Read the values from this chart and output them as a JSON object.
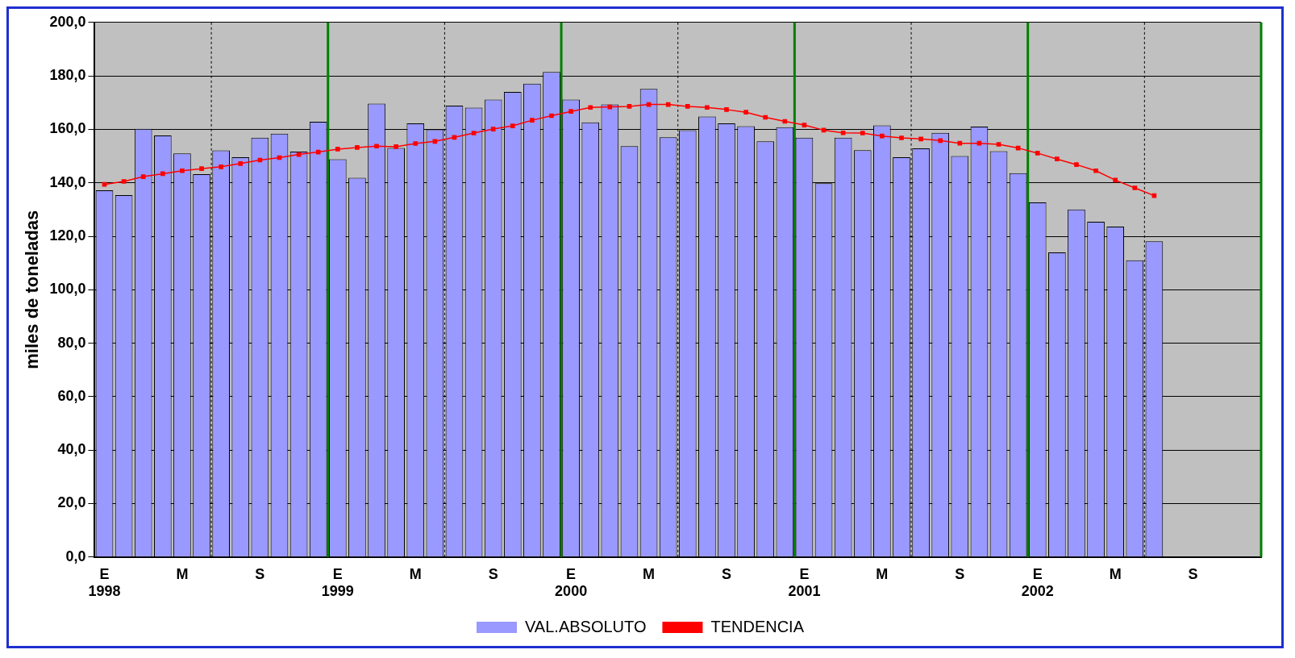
{
  "chart_data": {
    "type": "bar",
    "ylabel": "miles de toneladas",
    "categories": [
      "E\n1998",
      null,
      null,
      null,
      "M",
      null,
      null,
      null,
      "S",
      null,
      null,
      null,
      "E\n1999",
      null,
      null,
      null,
      "M",
      null,
      null,
      null,
      "S",
      null,
      null,
      null,
      "E\n2000",
      null,
      null,
      null,
      "M",
      null,
      null,
      null,
      "S",
      null,
      null,
      null,
      "E\n2001",
      null,
      null,
      null,
      "M",
      null,
      null,
      null,
      "S",
      null,
      null,
      null,
      "E\n2002",
      null,
      null,
      null,
      "M",
      null,
      null,
      null,
      "S",
      null,
      null,
      null
    ],
    "series": [
      {
        "name": "VAL.ABSOLUTO",
        "color": "#9999ff",
        "values": [
          137.2,
          135.4,
          160.2,
          157.7,
          151.0,
          143.2,
          152.1,
          149.6,
          156.9,
          158.4,
          151.7,
          162.8,
          148.8,
          141.9,
          169.6,
          153.0,
          162.2,
          160.0,
          168.9,
          168.1,
          171.1,
          174.0,
          177.1,
          181.5,
          171.1,
          162.6,
          169.3,
          153.7,
          175.1,
          157.0,
          159.7,
          164.8,
          162.2,
          161.2,
          155.5,
          160.8,
          156.9,
          139.8,
          156.9,
          152.2,
          161.5,
          149.6,
          152.9,
          158.7,
          150.0,
          161.0,
          151.8,
          143.6,
          132.7,
          114.0,
          130.0,
          125.4,
          123.6,
          111.0,
          118.1,
          null,
          null,
          null,
          null,
          null
        ]
      },
      {
        "name": "TENDENCIA",
        "type": "line",
        "color": "#ff0000",
        "values": [
          139.4,
          140.5,
          142.3,
          143.4,
          144.5,
          145.3,
          146.0,
          147.2,
          148.5,
          149.4,
          150.6,
          151.5,
          152.6,
          153.2,
          153.7,
          153.5,
          154.7,
          155.5,
          157.0,
          158.6,
          160.1,
          161.3,
          163.4,
          165.1,
          166.7,
          168.2,
          168.4,
          168.6,
          169.3,
          169.3,
          168.6,
          168.2,
          167.4,
          166.4,
          164.5,
          163.0,
          161.6,
          159.7,
          158.7,
          158.6,
          157.5,
          156.8,
          156.4,
          155.8,
          154.8,
          154.8,
          154.4,
          153.0,
          151.1,
          148.9,
          146.8,
          144.5,
          141.0,
          138.1,
          135.2,
          null,
          null,
          null,
          null,
          null
        ]
      }
    ],
    "ylim": [
      0,
      200
    ],
    "yticks": [
      {
        "value": 0,
        "label": "0,0"
      },
      {
        "value": 20,
        "label": "20,0"
      },
      {
        "value": 40,
        "label": "40,0"
      },
      {
        "value": 60,
        "label": "60,0"
      },
      {
        "value": 80,
        "label": "80,0"
      },
      {
        "value": 100,
        "label": "100,0"
      },
      {
        "value": 120,
        "label": "120,0"
      },
      {
        "value": 140,
        "label": "140,0"
      },
      {
        "value": 160,
        "label": "160,0"
      },
      {
        "value": 180,
        "label": "180,0"
      },
      {
        "value": 200,
        "label": "200,0"
      }
    ],
    "grid": true,
    "legend": "bottom",
    "marker": "square",
    "line_style": "solid"
  }
}
